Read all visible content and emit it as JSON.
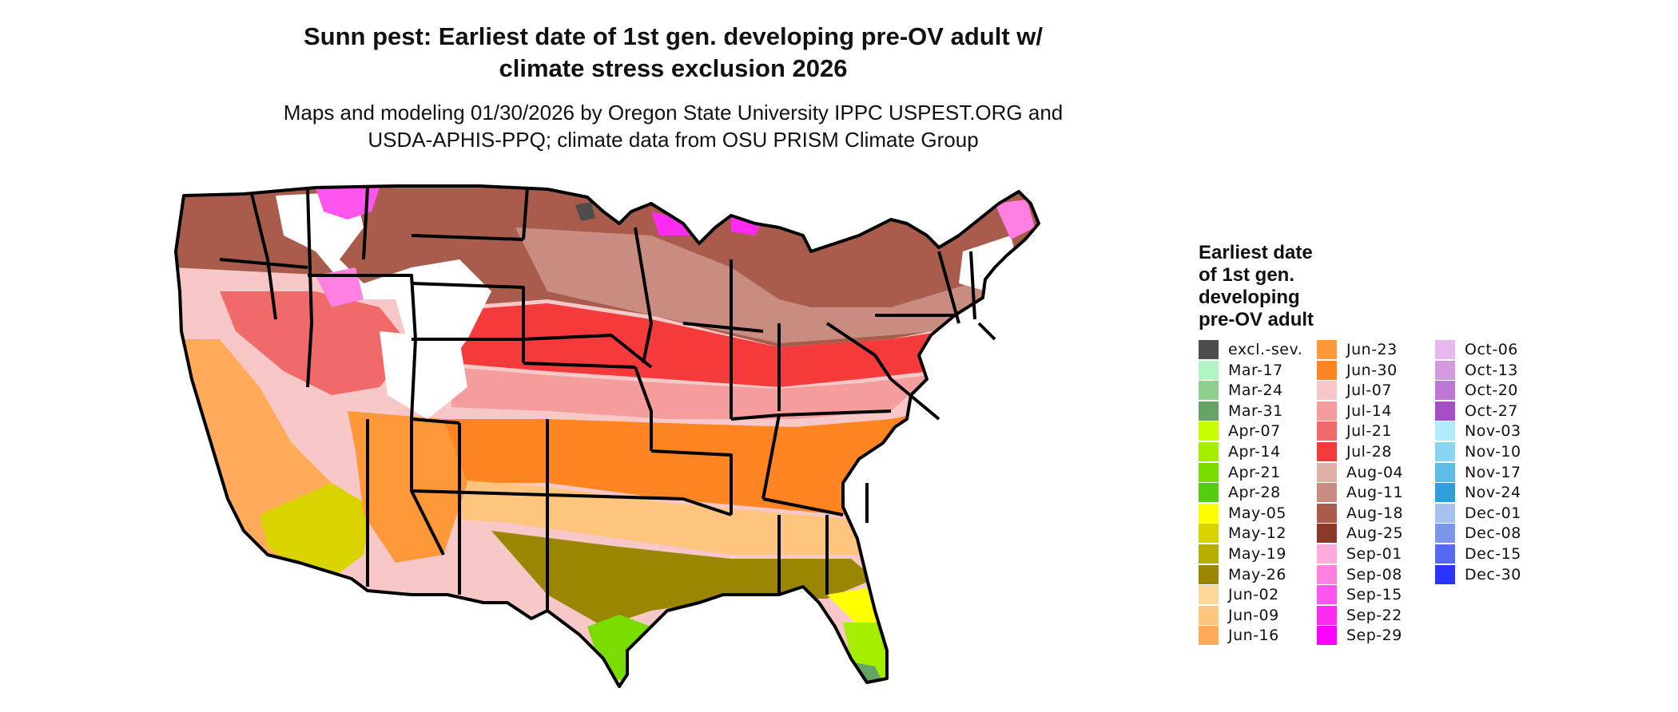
{
  "title_line1": "Sunn pest: Earliest date of 1st gen. developing pre-OV adult w/",
  "title_line2": "climate stress exclusion 2026",
  "subtitle_line1": "Maps and modeling 01/30/2026 by Oregon State University IPPC USPEST.ORG and",
  "subtitle_line2": "USDA-APHIS-PPQ; climate data from OSU PRISM Climate Group",
  "legend": {
    "title_lines": [
      "Earliest date",
      "of 1st gen.",
      "developing",
      "pre-OV adult"
    ],
    "columns": [
      [
        {
          "label": "excl.-sev.",
          "color": "#4d4d4d"
        },
        {
          "label": "Mar-17",
          "color": "#b2f5c4"
        },
        {
          "label": "Mar-24",
          "color": "#8ecf8f"
        },
        {
          "label": "Mar-31",
          "color": "#66a366"
        },
        {
          "label": "Apr-07",
          "color": "#c8ff00"
        },
        {
          "label": "Apr-14",
          "color": "#a6ee00"
        },
        {
          "label": "Apr-21",
          "color": "#7bdc00"
        },
        {
          "label": "Apr-28",
          "color": "#55cc11"
        },
        {
          "label": "May-05",
          "color": "#ffff00"
        },
        {
          "label": "May-12",
          "color": "#d9d400"
        },
        {
          "label": "May-19",
          "color": "#b8ae00"
        },
        {
          "label": "May-26",
          "color": "#9a8600"
        },
        {
          "label": "Jun-02",
          "color": "#ffd79a"
        },
        {
          "label": "Jun-09",
          "color": "#ffc47e"
        },
        {
          "label": "Jun-16",
          "color": "#ffab5a"
        }
      ],
      [
        {
          "label": "Jun-23",
          "color": "#ff9838"
        },
        {
          "label": "Jun-30",
          "color": "#ff8522"
        },
        {
          "label": "Jul-07",
          "color": "#f8c8c8"
        },
        {
          "label": "Jul-14",
          "color": "#f59c9c"
        },
        {
          "label": "Jul-21",
          "color": "#f06a6a"
        },
        {
          "label": "Jul-28",
          "color": "#f43a3a"
        },
        {
          "label": "Aug-04",
          "color": "#e0b0a8"
        },
        {
          "label": "Aug-11",
          "color": "#c98c80"
        },
        {
          "label": "Aug-18",
          "color": "#aa5c4c"
        },
        {
          "label": "Aug-25",
          "color": "#8b3a2a"
        },
        {
          "label": "Sep-01",
          "color": "#ffaadd"
        },
        {
          "label": "Sep-08",
          "color": "#ff80e0"
        },
        {
          "label": "Sep-15",
          "color": "#ff55ee"
        },
        {
          "label": "Sep-22",
          "color": "#ff2af2"
        },
        {
          "label": "Sep-29",
          "color": "#ff00ff"
        }
      ],
      [
        {
          "label": "Oct-06",
          "color": "#e6b8ee"
        },
        {
          "label": "Oct-13",
          "color": "#d39ae0"
        },
        {
          "label": "Oct-20",
          "color": "#be78d4"
        },
        {
          "label": "Oct-27",
          "color": "#a450c4"
        },
        {
          "label": "Nov-03",
          "color": "#b3ecff"
        },
        {
          "label": "Nov-10",
          "color": "#88d6f2"
        },
        {
          "label": "Nov-17",
          "color": "#5dbde8"
        },
        {
          "label": "Nov-24",
          "color": "#2f9fdc"
        },
        {
          "label": "Dec-01",
          "color": "#a8c0f0"
        },
        {
          "label": "Dec-08",
          "color": "#7d96ec"
        },
        {
          "label": "Dec-15",
          "color": "#5469ee"
        },
        {
          "label": "Dec-30",
          "color": "#2a34ff"
        }
      ]
    ]
  },
  "map": {
    "regions": [
      {
        "name": "west-coast",
        "color": "#ffab5a"
      },
      {
        "name": "desert-southwest",
        "color": "#d9d400"
      },
      {
        "name": "northern-tier",
        "color": "#aa5c4c"
      },
      {
        "name": "central-plains",
        "color": "#f43a3a"
      },
      {
        "name": "mid-latitude",
        "color": "#f8c8c8"
      },
      {
        "name": "southern-tier",
        "color": "#ff8522"
      },
      {
        "name": "gulf-coast",
        "color": "#9a8600"
      },
      {
        "name": "south-texas",
        "color": "#7bdc00"
      },
      {
        "name": "florida",
        "color": "#a6ee00"
      },
      {
        "name": "mountain-white",
        "color": "#ffffff"
      },
      {
        "name": "late-magenta",
        "color": "#ff55ee"
      }
    ]
  }
}
